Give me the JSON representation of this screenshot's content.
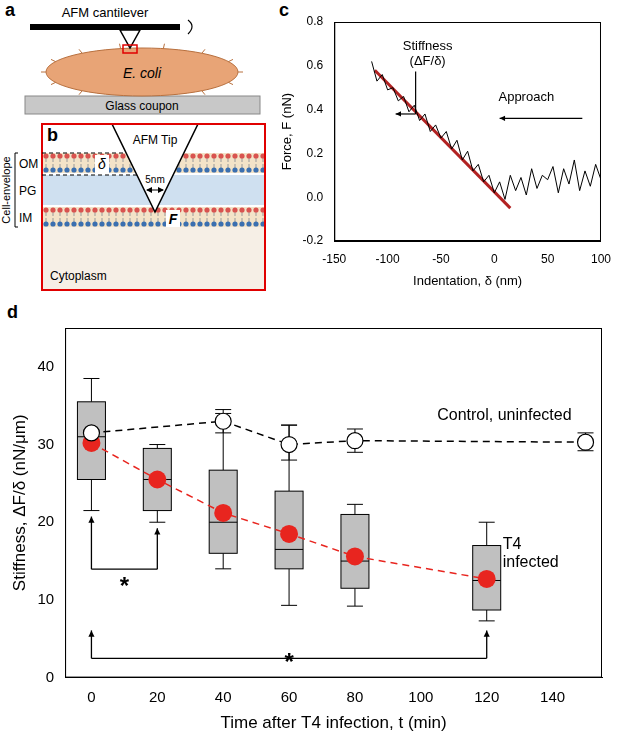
{
  "diagrams": {
    "a": {
      "letter": "a",
      "labels": {
        "cantilever": "AFM cantilever",
        "cell": "E. coli",
        "substrate": "Glass coupon"
      }
    },
    "b": {
      "letter": "b",
      "labels": {
        "tip": "AFM Tip",
        "tip_width": "5nm",
        "outer_membrane": "OM",
        "peptidoglycan": "PG",
        "inner_membrane": "IM",
        "cytoplasm": "Cytoplasm",
        "envelope": "Cell-envelope",
        "indentation": "δ",
        "force": "F"
      }
    }
  },
  "chart_data": [
    {
      "letter": "c",
      "type": "line",
      "x_label": "Indentation, δ (nm)",
      "y_label": "Force, F (nN)",
      "xlim": [
        -150,
        100
      ],
      "xticks": [
        -150,
        -100,
        -50,
        0,
        50,
        100
      ],
      "ylim": [
        -0.2,
        0.8
      ],
      "yticks": [
        -0.2,
        {
          "value": 0,
          "label": "0.0"
        },
        0.2,
        0.4,
        0.6,
        0.8
      ],
      "grid": false,
      "annotations": [
        {
          "text": "Stiffness (ΔF/δ)"
        },
        {
          "text": "Approach"
        }
      ],
      "series": [
        {
          "x": [
            100,
            95,
            90,
            85,
            80,
            75,
            70,
            65,
            60,
            55,
            50,
            45,
            40,
            35,
            30,
            25,
            20,
            15,
            10,
            5,
            0,
            -5,
            -10,
            -15,
            -20,
            -25,
            -30,
            -35,
            -40,
            -45,
            -50,
            -55,
            -60,
            -65,
            -70,
            -75,
            -80,
            -85,
            -90,
            -95,
            -100,
            -105,
            -110,
            -115
          ],
          "values": [
            0.08,
            0.15,
            0.05,
            0.12,
            0.03,
            0.17,
            0.06,
            0.13,
            0.02,
            0.14,
            0.08,
            0.1,
            0.04,
            0.13,
            0.01,
            0.09,
            0.03,
            0.1,
            -0.01,
            0.07,
            0.02,
            0.1,
            0.07,
            0.15,
            0.12,
            0.21,
            0.17,
            0.26,
            0.22,
            0.3,
            0.27,
            0.33,
            0.3,
            0.38,
            0.35,
            0.42,
            0.39,
            0.46,
            0.44,
            0.5,
            0.49,
            0.56,
            0.53,
            0.62
          ],
          "color": "#000000",
          "line_style": "solid"
        },
        {
          "x": [
            15,
            -112
          ],
          "values": [
            -0.05,
            0.58
          ],
          "color": "#b22222",
          "line_style": "solid"
        }
      ]
    },
    {
      "letter": "d",
      "type": "line",
      "x_label": "Time after T4 infection, t (min)",
      "y_label": "Stiffness, ΔF/δ (nN/μm)",
      "xlim": [
        -8,
        155
      ],
      "xticks": [
        0,
        20,
        40,
        60,
        80,
        100,
        120,
        140
      ],
      "ylim": [
        0,
        45
      ],
      "yticks": [
        0,
        10,
        20,
        30,
        40
      ],
      "grid": false,
      "series": [
        {
          "name": "Control, uninfected",
          "x": [
            0,
            40,
            60,
            80,
            150
          ],
          "values": [
            31.5,
            33,
            30,
            30.5,
            30.3
          ],
          "error_range": [
            [
              30,
              33.5
            ],
            [
              31.5,
              34.5
            ],
            [
              28,
              32.5
            ],
            [
              29,
              32
            ],
            [
              29.2,
              31.5
            ]
          ],
          "color": "#000000",
          "marker": "open_circle",
          "line_style": "dashed"
        },
        {
          "name": "T4 infected",
          "x": [
            0,
            20,
            40,
            60,
            80,
            120
          ],
          "values": [
            30.2,
            25.5,
            21.2,
            18.5,
            15.6,
            12.7
          ],
          "box": {
            "whisker_low": [
              21.5,
              20,
              14,
              9.3,
              9.2,
              7.3
            ],
            "q1": [
              25.5,
              21.5,
              16,
              14,
              11.5,
              8.7
            ],
            "median": [
              31,
              25.5,
              20,
              16.5,
              15,
              12.5
            ],
            "q3": [
              35.5,
              29.5,
              26.7,
              24,
              21,
              17
            ],
            "whisker_high": [
              38.5,
              30,
              34,
              32.5,
              22.3,
              20
            ]
          },
          "color": "#e8251f",
          "marker": "circle",
          "line_style": "dashed"
        }
      ],
      "significance": [
        {
          "text": "*",
          "from": 0,
          "to": 20
        },
        {
          "text": "*",
          "from": 0,
          "to": 120
        }
      ]
    }
  ]
}
